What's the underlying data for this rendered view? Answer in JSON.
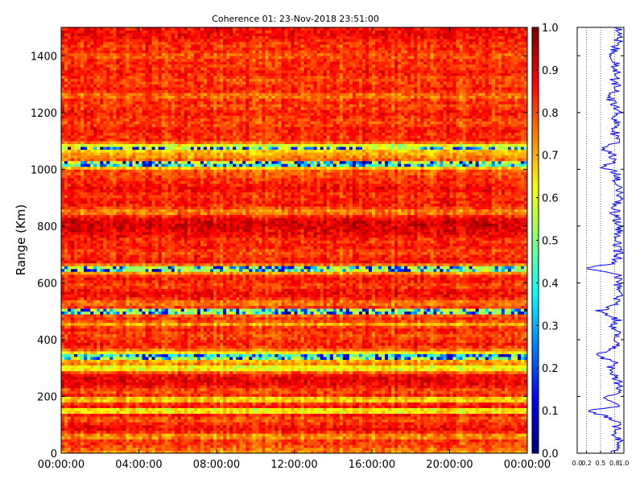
{
  "chart_data": [
    {
      "type": "heatmap",
      "title": "Coherence 01: 23-Nov-2018 23:51:00",
      "ylabel": "Range (Km)",
      "xlabel": "",
      "x_tick_labels": [
        "00:00:00",
        "04:00:00",
        "08:00:00",
        "12:00:00",
        "16:00:00",
        "20:00:00",
        "00:00:00"
      ],
      "y_ticks": [
        0,
        200,
        400,
        600,
        800,
        1000,
        1200,
        1400
      ],
      "ylim": [
        0,
        1500
      ],
      "x_range_hours": [
        0,
        24
      ],
      "colormap": "jet",
      "colorbar": {
        "range": [
          0,
          1
        ],
        "ticks": [
          "0.0",
          "0.1",
          "0.2",
          "0.3",
          "0.4",
          "0.5",
          "0.6",
          "0.7",
          "0.8",
          "0.9",
          "1.0"
        ]
      },
      "range_profile_km_coherence": [
        [
          0,
          0.78
        ],
        [
          15,
          0.85
        ],
        [
          30,
          0.82
        ],
        [
          45,
          0.9
        ],
        [
          60,
          0.8
        ],
        [
          75,
          0.88
        ],
        [
          90,
          0.84
        ],
        [
          105,
          0.9
        ],
        [
          120,
          0.78
        ],
        [
          150,
          0.25
        ],
        [
          165,
          0.85
        ],
        [
          180,
          0.8
        ],
        [
          195,
          0.6
        ],
        [
          210,
          0.86
        ],
        [
          240,
          0.9
        ],
        [
          270,
          0.82
        ],
        [
          300,
          0.7
        ],
        [
          320,
          0.85
        ],
        [
          345,
          0.35
        ],
        [
          360,
          0.72
        ],
        [
          380,
          0.88
        ],
        [
          400,
          0.8
        ],
        [
          430,
          0.85
        ],
        [
          455,
          0.75
        ],
        [
          470,
          0.86
        ],
        [
          500,
          0.45
        ],
        [
          520,
          0.8
        ],
        [
          545,
          0.88
        ],
        [
          570,
          0.84
        ],
        [
          600,
          0.9
        ],
        [
          630,
          0.86
        ],
        [
          650,
          0.2
        ],
        [
          670,
          0.82
        ],
        [
          700,
          0.9
        ],
        [
          720,
          0.85
        ],
        [
          760,
          0.88
        ],
        [
          800,
          0.92
        ],
        [
          840,
          0.78
        ],
        [
          880,
          0.86
        ],
        [
          920,
          0.9
        ],
        [
          960,
          0.84
        ],
        [
          990,
          0.82
        ],
        [
          1010,
          0.5
        ],
        [
          1030,
          0.8
        ],
        [
          1050,
          0.74
        ],
        [
          1075,
          0.6
        ],
        [
          1100,
          0.86
        ],
        [
          1130,
          0.8
        ],
        [
          1170,
          0.84
        ],
        [
          1200,
          0.88
        ],
        [
          1230,
          0.82
        ],
        [
          1250,
          0.7
        ],
        [
          1280,
          0.86
        ],
        [
          1320,
          0.8
        ],
        [
          1360,
          0.84
        ],
        [
          1400,
          0.78
        ],
        [
          1440,
          0.86
        ],
        [
          1470,
          0.9
        ],
        [
          1500,
          0.88
        ]
      ],
      "band_mean_coherence_by_range": [
        [
          0,
          0.72
        ],
        [
          25,
          0.8
        ],
        [
          45,
          0.82
        ],
        [
          60,
          0.7
        ],
        [
          80,
          0.88
        ],
        [
          100,
          0.85
        ],
        [
          120,
          0.78
        ],
        [
          140,
          0.88
        ],
        [
          150,
          0.4
        ],
        [
          160,
          0.86
        ],
        [
          175,
          0.82
        ],
        [
          190,
          0.6
        ],
        [
          205,
          0.84
        ],
        [
          220,
          0.78
        ],
        [
          240,
          0.88
        ],
        [
          260,
          0.9
        ],
        [
          280,
          0.86
        ],
        [
          300,
          0.55
        ],
        [
          320,
          0.8
        ],
        [
          330,
          0.6
        ],
        [
          345,
          0.45
        ],
        [
          360,
          0.72
        ],
        [
          380,
          0.86
        ],
        [
          400,
          0.82
        ],
        [
          420,
          0.8
        ],
        [
          440,
          0.86
        ],
        [
          455,
          0.7
        ],
        [
          470,
          0.84
        ],
        [
          485,
          0.78
        ],
        [
          500,
          0.4
        ],
        [
          515,
          0.82
        ],
        [
          530,
          0.74
        ],
        [
          550,
          0.86
        ],
        [
          570,
          0.88
        ],
        [
          590,
          0.8
        ],
        [
          610,
          0.86
        ],
        [
          630,
          0.82
        ],
        [
          650,
          0.45
        ],
        [
          670,
          0.86
        ],
        [
          690,
          0.84
        ],
        [
          710,
          0.8
        ],
        [
          730,
          0.86
        ],
        [
          750,
          0.82
        ],
        [
          770,
          0.88
        ],
        [
          790,
          0.9
        ],
        [
          810,
          0.92
        ],
        [
          830,
          0.88
        ],
        [
          850,
          0.72
        ],
        [
          870,
          0.84
        ],
        [
          890,
          0.86
        ],
        [
          910,
          0.82
        ],
        [
          930,
          0.88
        ],
        [
          950,
          0.84
        ],
        [
          970,
          0.82
        ],
        [
          990,
          0.78
        ],
        [
          1000,
          0.8
        ],
        [
          1010,
          0.55
        ],
        [
          1020,
          0.4
        ],
        [
          1030,
          0.78
        ],
        [
          1050,
          0.72
        ],
        [
          1065,
          0.68
        ],
        [
          1080,
          0.52
        ],
        [
          1100,
          0.84
        ],
        [
          1120,
          0.82
        ],
        [
          1140,
          0.86
        ],
        [
          1160,
          0.8
        ],
        [
          1180,
          0.82
        ],
        [
          1200,
          0.86
        ],
        [
          1220,
          0.8
        ],
        [
          1240,
          0.84
        ],
        [
          1260,
          0.74
        ],
        [
          1280,
          0.86
        ],
        [
          1300,
          0.82
        ],
        [
          1320,
          0.8
        ],
        [
          1340,
          0.86
        ],
        [
          1360,
          0.82
        ],
        [
          1380,
          0.84
        ],
        [
          1400,
          0.78
        ],
        [
          1420,
          0.84
        ],
        [
          1440,
          0.82
        ],
        [
          1460,
          0.86
        ],
        [
          1480,
          0.88
        ],
        [
          1500,
          0.86
        ]
      ],
      "profile_axis": {
        "xlim": [
          0,
          1
        ],
        "x_tick_labels": [
          "0.0",
          "0.2",
          "0.5",
          "0.8",
          "1.0"
        ]
      }
    }
  ],
  "colors": {
    "profile_line": "#0000ff",
    "frame": "#000000"
  }
}
